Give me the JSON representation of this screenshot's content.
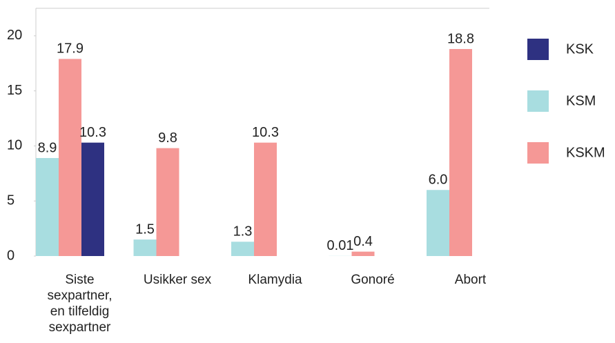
{
  "chart_data": {
    "type": "bar",
    "categories": [
      "Siste sexpartner, en tilfeldig sexpartner",
      "Usikker sex",
      "Klamydia",
      "Gonoré",
      "Abort"
    ],
    "series": [
      {
        "name": "KSM",
        "color": "#a8dde0",
        "values": [
          8.9,
          1.5,
          1.3,
          0.01,
          6.0
        ],
        "value_labels": [
          "8.9",
          "1.5",
          "1.3",
          "0.01",
          "6.0"
        ]
      },
      {
        "name": "KSKM",
        "color": "#f59896",
        "values": [
          17.9,
          9.8,
          10.3,
          0.4,
          18.8
        ]
      },
      {
        "name": "KSK",
        "color": "#2e3181",
        "values": [
          10.3,
          null,
          null,
          null,
          null
        ]
      }
    ],
    "legend_order": [
      "KSK",
      "KSM",
      "KSKM"
    ],
    "ylim": [
      0,
      22.5
    ],
    "yticks": [
      0,
      5,
      10,
      15,
      20
    ],
    "grid": false,
    "legend": "right"
  }
}
